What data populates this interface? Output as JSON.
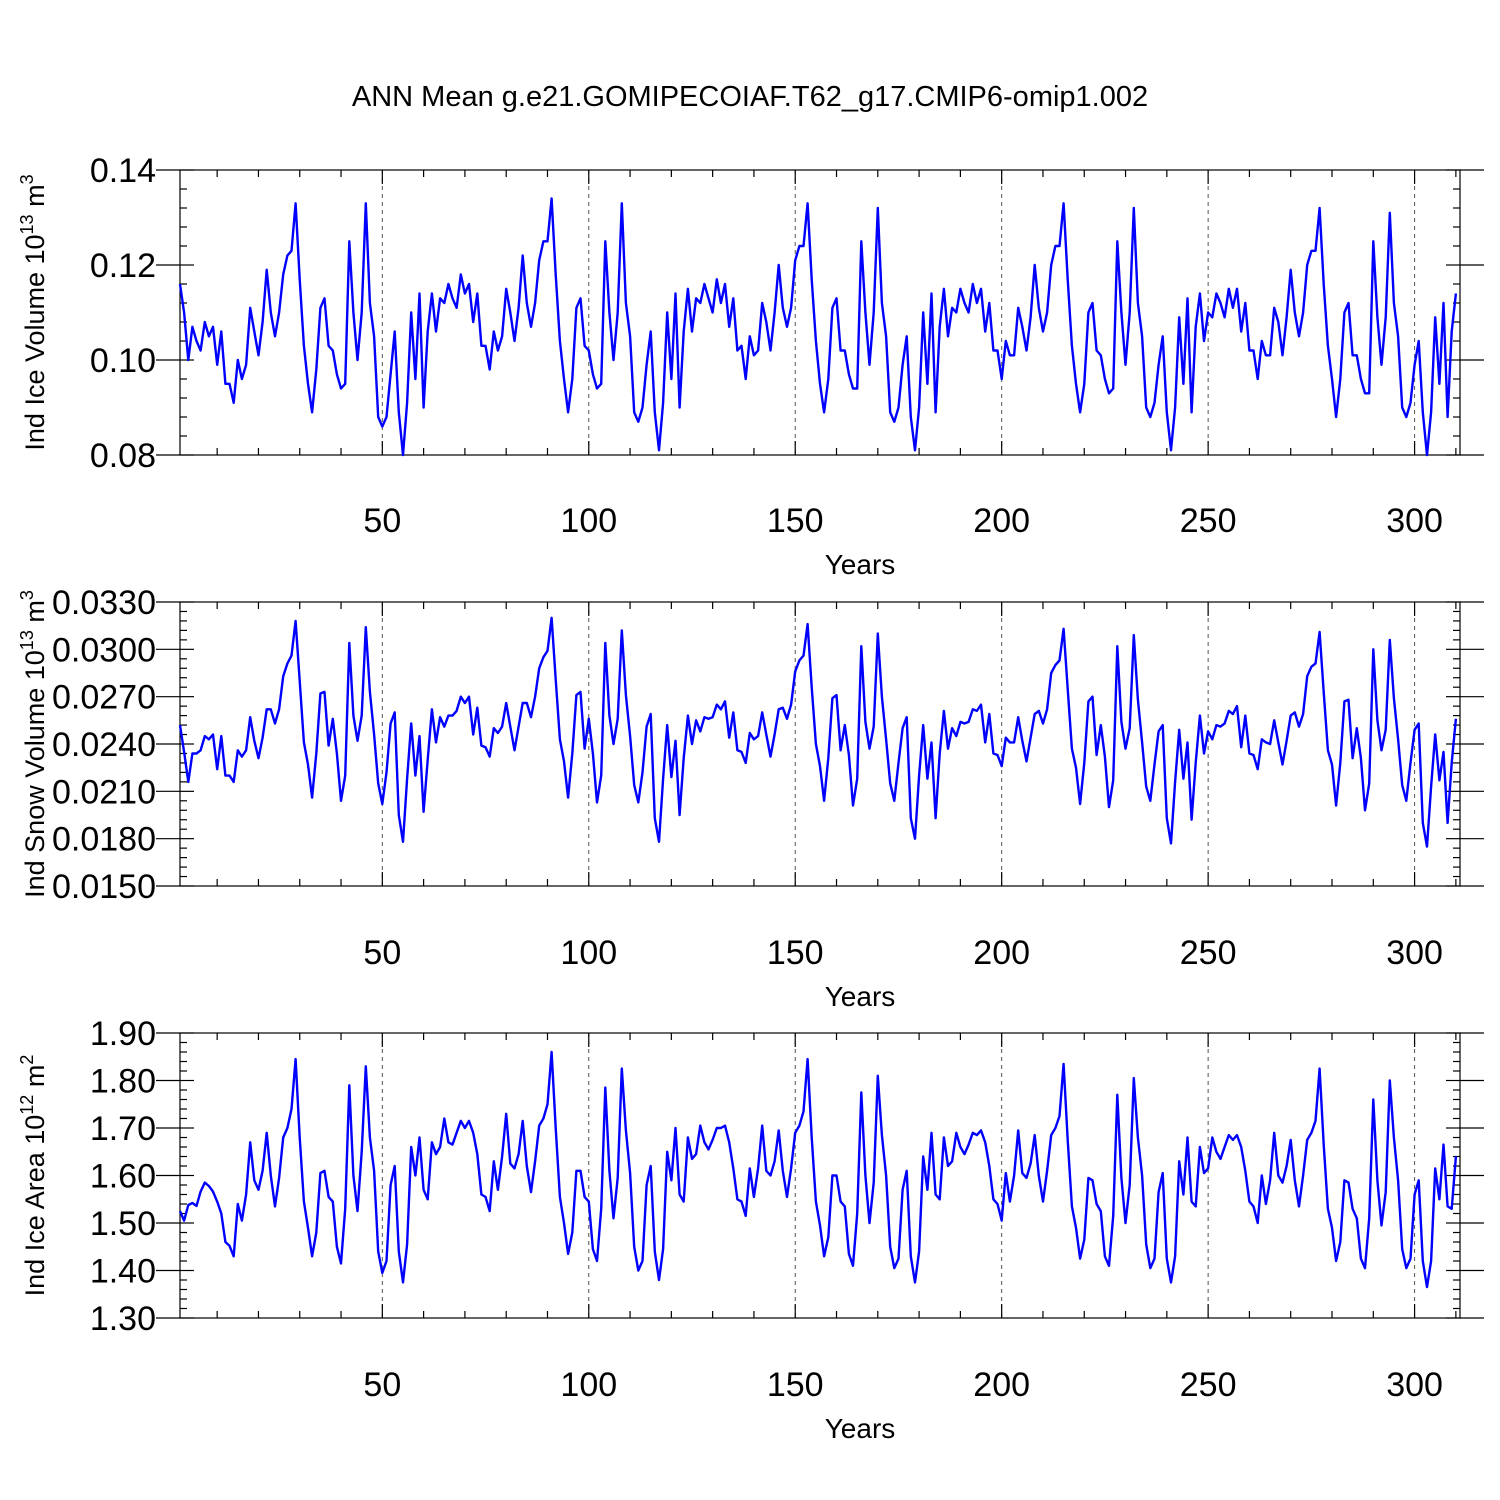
{
  "title": "ANN Mean g.e21.GOMIPECOIAF.T62_g17.CMIP6-omip1.002",
  "line_color": "#0000ff",
  "chart_data": [
    {
      "type": "line",
      "ylabel": "Ind Ice Volume 10",
      "ylabel_exp": "13",
      "ylabel_unit": " m",
      "ylabel_unit_exp": "3",
      "xlabel": "Years",
      "xlim": [
        1,
        311
      ],
      "ylim": [
        0.08,
        0.14
      ],
      "yticks": [
        0.08,
        0.1,
        0.12,
        0.14
      ],
      "ytick_labels": [
        "0.08",
        "0.10",
        "0.12",
        "0.14"
      ],
      "xticks": [
        50,
        100,
        150,
        200,
        250,
        300
      ],
      "xtick_labels": [
        "50",
        "100",
        "150",
        "200",
        "250",
        "300"
      ],
      "x_start": 1,
      "y": [
        0.116,
        0.11,
        0.1,
        0.107,
        0.104,
        0.102,
        0.108,
        0.105,
        0.107,
        0.099,
        0.106,
        0.095,
        0.095,
        0.091,
        0.1,
        0.096,
        0.099,
        0.111,
        0.106,
        0.101,
        0.108,
        0.119,
        0.11,
        0.105,
        0.11,
        0.118,
        0.122,
        0.123,
        0.133,
        0.117,
        0.103,
        0.095,
        0.089,
        0.098,
        0.111,
        0.113,
        0.103,
        0.102,
        0.097,
        0.094,
        0.095,
        0.125,
        0.11,
        0.1,
        0.11,
        0.133,
        0.112,
        0.105,
        0.088,
        0.086,
        0.088,
        0.097,
        0.106,
        0.089,
        0.08,
        0.091,
        0.11,
        0.096,
        0.114,
        0.09,
        0.106,
        0.114,
        0.106,
        0.113,
        0.112,
        0.116,
        0.113,
        0.111,
        0.118,
        0.114,
        0.116,
        0.108,
        0.114,
        0.103,
        0.103,
        0.098,
        0.106,
        0.102,
        0.105,
        0.115,
        0.11,
        0.104,
        0.111,
        0.122,
        0.112,
        0.107,
        0.112,
        0.121,
        0.125,
        0.125,
        0.134,
        0.118,
        0.104,
        0.096,
        0.089,
        0.096,
        0.111,
        0.113,
        0.103,
        0.102,
        0.097,
        0.094,
        0.095,
        0.125,
        0.11,
        0.1,
        0.11,
        0.133,
        0.112,
        0.105,
        0.089,
        0.087,
        0.09,
        0.099,
        0.106,
        0.089,
        0.081,
        0.091,
        0.11,
        0.096,
        0.114,
        0.09,
        0.106,
        0.115,
        0.106,
        0.113,
        0.112,
        0.116,
        0.113,
        0.11,
        0.117,
        0.112,
        0.116,
        0.107,
        0.113,
        0.102,
        0.103,
        0.096,
        0.105,
        0.101,
        0.102,
        0.112,
        0.108,
        0.102,
        0.11,
        0.12,
        0.111,
        0.107,
        0.111,
        0.121,
        0.124,
        0.124,
        0.133,
        0.117,
        0.104,
        0.095,
        0.089,
        0.096,
        0.111,
        0.113,
        0.102,
        0.102,
        0.097,
        0.094,
        0.094,
        0.125,
        0.11,
        0.099,
        0.11,
        0.132,
        0.112,
        0.105,
        0.089,
        0.087,
        0.09,
        0.099,
        0.105,
        0.088,
        0.081,
        0.09,
        0.11,
        0.095,
        0.114,
        0.089,
        0.107,
        0.115,
        0.105,
        0.111,
        0.11,
        0.115,
        0.112,
        0.11,
        0.116,
        0.112,
        0.115,
        0.106,
        0.112,
        0.102,
        0.102,
        0.096,
        0.104,
        0.101,
        0.101,
        0.111,
        0.107,
        0.102,
        0.109,
        0.12,
        0.111,
        0.106,
        0.11,
        0.12,
        0.124,
        0.124,
        0.133,
        0.117,
        0.103,
        0.095,
        0.089,
        0.095,
        0.11,
        0.112,
        0.102,
        0.101,
        0.096,
        0.093,
        0.094,
        0.125,
        0.11,
        0.099,
        0.11,
        0.132,
        0.112,
        0.105,
        0.09,
        0.088,
        0.091,
        0.099,
        0.105,
        0.089,
        0.081,
        0.09,
        0.109,
        0.095,
        0.113,
        0.089,
        0.107,
        0.114,
        0.104,
        0.11,
        0.109,
        0.114,
        0.112,
        0.109,
        0.115,
        0.111,
        0.115,
        0.106,
        0.112,
        0.102,
        0.102,
        0.096,
        0.104,
        0.101,
        0.101,
        0.111,
        0.108,
        0.101,
        0.109,
        0.119,
        0.11,
        0.105,
        0.11,
        0.12,
        0.123,
        0.123,
        0.132,
        0.116,
        0.103,
        0.096,
        0.088,
        0.096,
        0.11,
        0.112,
        0.101,
        0.101,
        0.096,
        0.093,
        0.093,
        0.125,
        0.109,
        0.099,
        0.109,
        0.131,
        0.112,
        0.105,
        0.09,
        0.088,
        0.091,
        0.099,
        0.104,
        0.089,
        0.08,
        0.089,
        0.109,
        0.095,
        0.112,
        0.088,
        0.106,
        0.114
      ]
    },
    {
      "type": "line",
      "ylabel": "Ind Snow Volume 10",
      "ylabel_exp": "13",
      "ylabel_unit": " m",
      "ylabel_unit_exp": "3",
      "xlabel": "Years",
      "xlim": [
        1,
        311
      ],
      "ylim": [
        0.015,
        0.033
      ],
      "yticks": [
        0.015,
        0.018,
        0.021,
        0.024,
        0.027,
        0.03,
        0.033
      ],
      "ytick_labels": [
        "0.0150",
        "0.0180",
        "0.0210",
        "0.0240",
        "0.0270",
        "0.0300",
        "0.0330"
      ],
      "xticks": [
        50,
        100,
        150,
        200,
        250,
        300
      ],
      "xtick_labels": [
        "50",
        "100",
        "150",
        "200",
        "250",
        "300"
      ],
      "x_start": 1,
      "y": [
        0.0252,
        0.0235,
        0.0216,
        0.0234,
        0.0234,
        0.0236,
        0.0245,
        0.0243,
        0.0246,
        0.0224,
        0.0245,
        0.022,
        0.022,
        0.0216,
        0.0236,
        0.0232,
        0.0236,
        0.0257,
        0.0242,
        0.0231,
        0.0244,
        0.0262,
        0.0262,
        0.0253,
        0.0262,
        0.0283,
        0.0291,
        0.0296,
        0.0318,
        0.028,
        0.0241,
        0.0227,
        0.0206,
        0.0234,
        0.0272,
        0.0273,
        0.0239,
        0.0256,
        0.0234,
        0.0204,
        0.022,
        0.0304,
        0.0258,
        0.0242,
        0.0258,
        0.0314,
        0.0273,
        0.0246,
        0.0215,
        0.0202,
        0.0222,
        0.0253,
        0.026,
        0.0195,
        0.0178,
        0.0218,
        0.0253,
        0.022,
        0.0245,
        0.0197,
        0.023,
        0.0262,
        0.0241,
        0.0257,
        0.0251,
        0.0258,
        0.0258,
        0.0261,
        0.027,
        0.0266,
        0.027,
        0.0246,
        0.0263,
        0.0239,
        0.0238,
        0.0232,
        0.025,
        0.0247,
        0.0251,
        0.0266,
        0.0251,
        0.0236,
        0.0251,
        0.0266,
        0.0266,
        0.0257,
        0.027,
        0.0288,
        0.0295,
        0.0299,
        0.032,
        0.0281,
        0.0243,
        0.0229,
        0.0206,
        0.0234,
        0.0271,
        0.0273,
        0.0237,
        0.0256,
        0.0234,
        0.0203,
        0.022,
        0.0304,
        0.0258,
        0.024,
        0.0256,
        0.0312,
        0.0271,
        0.0245,
        0.0214,
        0.0203,
        0.0222,
        0.0251,
        0.0259,
        0.0193,
        0.0178,
        0.0218,
        0.0252,
        0.0219,
        0.0242,
        0.0195,
        0.0231,
        0.0258,
        0.024,
        0.0255,
        0.0248,
        0.0257,
        0.0256,
        0.0257,
        0.0265,
        0.0262,
        0.0267,
        0.0244,
        0.026,
        0.0236,
        0.0235,
        0.0228,
        0.0247,
        0.0243,
        0.0245,
        0.026,
        0.0246,
        0.0232,
        0.0246,
        0.0262,
        0.0263,
        0.0256,
        0.0265,
        0.0286,
        0.0293,
        0.0296,
        0.0316,
        0.0276,
        0.024,
        0.0226,
        0.0204,
        0.0231,
        0.0269,
        0.0271,
        0.0236,
        0.0252,
        0.0233,
        0.0201,
        0.0218,
        0.0302,
        0.0254,
        0.0237,
        0.0251,
        0.031,
        0.027,
        0.0243,
        0.0215,
        0.0204,
        0.0228,
        0.025,
        0.0257,
        0.0193,
        0.018,
        0.022,
        0.0252,
        0.0218,
        0.0241,
        0.0193,
        0.0234,
        0.0261,
        0.0237,
        0.025,
        0.0245,
        0.0254,
        0.0253,
        0.0254,
        0.0262,
        0.0261,
        0.0265,
        0.0241,
        0.0259,
        0.0234,
        0.0233,
        0.0226,
        0.0244,
        0.0241,
        0.0241,
        0.0257,
        0.0242,
        0.0229,
        0.0244,
        0.0259,
        0.0261,
        0.0253,
        0.0262,
        0.0285,
        0.029,
        0.0293,
        0.0313,
        0.0275,
        0.0237,
        0.0225,
        0.0202,
        0.0228,
        0.0267,
        0.027,
        0.0233,
        0.0252,
        0.0232,
        0.02,
        0.0217,
        0.0302,
        0.0254,
        0.0237,
        0.025,
        0.0309,
        0.0268,
        0.0241,
        0.0213,
        0.0204,
        0.0227,
        0.0248,
        0.0252,
        0.0193,
        0.0177,
        0.0216,
        0.0249,
        0.0218,
        0.0241,
        0.0192,
        0.0228,
        0.0258,
        0.0234,
        0.0248,
        0.0243,
        0.0252,
        0.0251,
        0.0253,
        0.0261,
        0.0259,
        0.0264,
        0.0238,
        0.0258,
        0.0234,
        0.0233,
        0.0224,
        0.0243,
        0.0241,
        0.024,
        0.0255,
        0.0241,
        0.0227,
        0.0242,
        0.0258,
        0.026,
        0.0251,
        0.0259,
        0.0283,
        0.0289,
        0.0291,
        0.0311,
        0.0273,
        0.0236,
        0.0227,
        0.0201,
        0.0228,
        0.0267,
        0.0268,
        0.0231,
        0.025,
        0.0231,
        0.0198,
        0.0215,
        0.03,
        0.0255,
        0.0236,
        0.0249,
        0.0306,
        0.0269,
        0.0243,
        0.0214,
        0.0204,
        0.0228,
        0.0249,
        0.0253,
        0.019,
        0.0175,
        0.0213,
        0.0246,
        0.0217,
        0.0235,
        0.019,
        0.0228,
        0.0256
      ]
    },
    {
      "type": "line",
      "ylabel": "Ind Ice Area 10",
      "ylabel_exp": "12",
      "ylabel_unit": " m",
      "ylabel_unit_exp": "2",
      "xlabel": "Years",
      "xlim": [
        1,
        311
      ],
      "ylim": [
        1.3,
        1.9
      ],
      "yticks": [
        1.3,
        1.4,
        1.5,
        1.6,
        1.7,
        1.8,
        1.9
      ],
      "ytick_labels": [
        "1.30",
        "1.40",
        "1.50",
        "1.60",
        "1.70",
        "1.80",
        "1.90"
      ],
      "xticks": [
        50,
        100,
        150,
        200,
        250,
        300
      ],
      "xtick_labels": [
        "50",
        "100",
        "150",
        "200",
        "250",
        "300"
      ],
      "x_start": 1,
      "y": [
        1.525,
        1.505,
        1.538,
        1.542,
        1.536,
        1.566,
        1.585,
        1.578,
        1.566,
        1.545,
        1.52,
        1.46,
        1.452,
        1.43,
        1.54,
        1.505,
        1.56,
        1.67,
        1.59,
        1.57,
        1.61,
        1.69,
        1.6,
        1.535,
        1.595,
        1.68,
        1.7,
        1.74,
        1.845,
        1.68,
        1.545,
        1.49,
        1.43,
        1.48,
        1.605,
        1.61,
        1.555,
        1.545,
        1.45,
        1.415,
        1.53,
        1.79,
        1.6,
        1.525,
        1.65,
        1.83,
        1.68,
        1.61,
        1.44,
        1.395,
        1.42,
        1.58,
        1.62,
        1.44,
        1.375,
        1.455,
        1.66,
        1.6,
        1.68,
        1.57,
        1.55,
        1.67,
        1.645,
        1.66,
        1.72,
        1.67,
        1.665,
        1.69,
        1.715,
        1.7,
        1.715,
        1.69,
        1.645,
        1.56,
        1.555,
        1.525,
        1.63,
        1.57,
        1.64,
        1.73,
        1.625,
        1.615,
        1.645,
        1.715,
        1.62,
        1.565,
        1.63,
        1.705,
        1.72,
        1.75,
        1.86,
        1.7,
        1.555,
        1.5,
        1.435,
        1.48,
        1.61,
        1.61,
        1.555,
        1.545,
        1.445,
        1.42,
        1.53,
        1.785,
        1.61,
        1.51,
        1.595,
        1.825,
        1.695,
        1.605,
        1.45,
        1.4,
        1.42,
        1.58,
        1.62,
        1.44,
        1.38,
        1.445,
        1.65,
        1.59,
        1.7,
        1.56,
        1.545,
        1.68,
        1.635,
        1.645,
        1.705,
        1.67,
        1.655,
        1.675,
        1.7,
        1.7,
        1.705,
        1.67,
        1.615,
        1.55,
        1.545,
        1.515,
        1.615,
        1.555,
        1.615,
        1.705,
        1.61,
        1.6,
        1.63,
        1.695,
        1.61,
        1.555,
        1.615,
        1.69,
        1.705,
        1.735,
        1.845,
        1.68,
        1.545,
        1.495,
        1.43,
        1.47,
        1.6,
        1.6,
        1.545,
        1.535,
        1.435,
        1.41,
        1.52,
        1.775,
        1.6,
        1.5,
        1.585,
        1.81,
        1.685,
        1.6,
        1.45,
        1.405,
        1.425,
        1.57,
        1.61,
        1.43,
        1.375,
        1.44,
        1.64,
        1.57,
        1.69,
        1.56,
        1.55,
        1.68,
        1.62,
        1.63,
        1.69,
        1.66,
        1.645,
        1.665,
        1.69,
        1.685,
        1.695,
        1.67,
        1.62,
        1.55,
        1.54,
        1.505,
        1.605,
        1.545,
        1.6,
        1.695,
        1.605,
        1.595,
        1.625,
        1.685,
        1.6,
        1.545,
        1.61,
        1.685,
        1.7,
        1.725,
        1.835,
        1.675,
        1.535,
        1.49,
        1.425,
        1.465,
        1.595,
        1.59,
        1.54,
        1.525,
        1.43,
        1.41,
        1.515,
        1.77,
        1.595,
        1.5,
        1.58,
        1.805,
        1.68,
        1.6,
        1.455,
        1.405,
        1.425,
        1.565,
        1.605,
        1.425,
        1.375,
        1.43,
        1.63,
        1.56,
        1.68,
        1.545,
        1.535,
        1.66,
        1.605,
        1.615,
        1.68,
        1.65,
        1.635,
        1.66,
        1.685,
        1.675,
        1.685,
        1.66,
        1.61,
        1.545,
        1.535,
        1.5,
        1.6,
        1.54,
        1.59,
        1.69,
        1.6,
        1.585,
        1.62,
        1.675,
        1.59,
        1.535,
        1.6,
        1.675,
        1.69,
        1.715,
        1.825,
        1.665,
        1.53,
        1.49,
        1.42,
        1.46,
        1.59,
        1.585,
        1.53,
        1.51,
        1.425,
        1.405,
        1.51,
        1.76,
        1.59,
        1.495,
        1.565,
        1.8,
        1.68,
        1.59,
        1.445,
        1.405,
        1.425,
        1.56,
        1.59,
        1.42,
        1.365,
        1.42,
        1.615,
        1.55,
        1.665,
        1.535,
        1.53,
        1.64
      ]
    }
  ]
}
